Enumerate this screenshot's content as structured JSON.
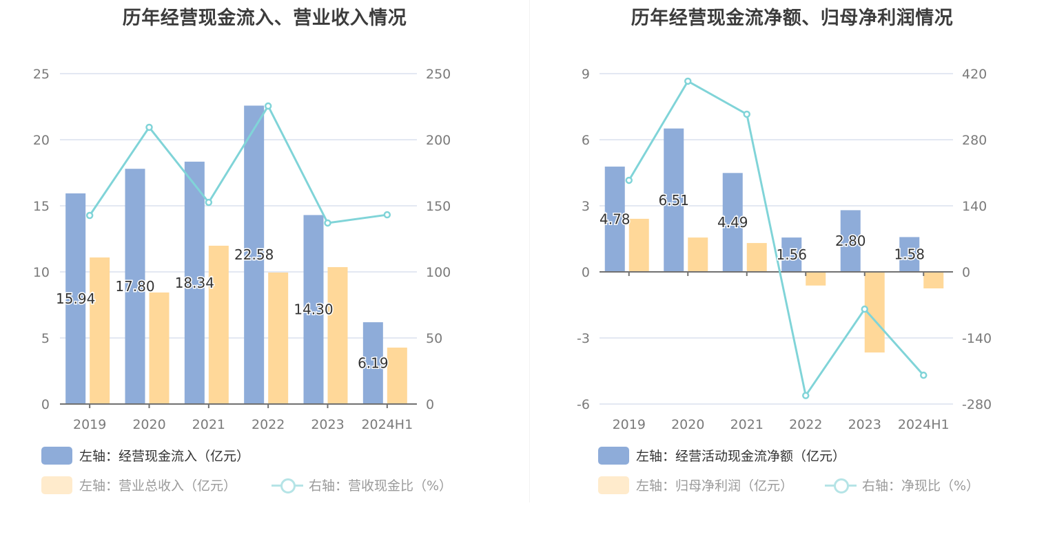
{
  "colors": {
    "bar_primary": "#8eacd9",
    "bar_secondary": "#ffd899",
    "line": "#80d4d8",
    "grid": "#e3e8f2",
    "axis": "#707070",
    "tick_text": "#7a7a7a",
    "label_text": "#333333"
  },
  "chart_data": [
    {
      "type": "bar",
      "title": "历年经营现金流入、营业收入情况",
      "categories": [
        "2019",
        "2020",
        "2021",
        "2022",
        "2023",
        "2024H1"
      ],
      "y_left": {
        "ticks": [
          "0",
          "5",
          "10",
          "15",
          "20",
          "25"
        ],
        "range": [
          0,
          25
        ]
      },
      "y_right": {
        "ticks": [
          "0",
          "50",
          "100",
          "150",
          "200",
          "250"
        ],
        "range": [
          0,
          250
        ]
      },
      "grid": true,
      "legend_position": "bottom-left",
      "series": [
        {
          "name": "左轴：经营现金流入（亿元）",
          "type": "bar",
          "axis": "left",
          "values": [
            15.94,
            17.8,
            18.34,
            22.58,
            14.3,
            6.19
          ],
          "labels": [
            "15.94",
            "17.80",
            "18.34",
            "22.58",
            "14.30",
            "6.19"
          ],
          "legend_active": true
        },
        {
          "name": "左轴：营业总收入（亿元）",
          "type": "bar",
          "axis": "left",
          "values": [
            11.09,
            8.44,
            11.98,
            9.95,
            10.36,
            4.27
          ],
          "legend_active": false
        },
        {
          "name": "右轴：营收现金比（%）",
          "type": "line",
          "axis": "right",
          "values": [
            142.7,
            209.4,
            152.6,
            225.5,
            137.0,
            143.2
          ],
          "legend_active": false
        }
      ]
    },
    {
      "type": "bar",
      "title": "历年经营现金流净额、归母净利润情况",
      "categories": [
        "2019",
        "2020",
        "2021",
        "2022",
        "2023",
        "2024H1"
      ],
      "y_left": {
        "ticks": [
          "-6",
          "-3",
          "0",
          "3",
          "6",
          "9"
        ],
        "range": [
          -6,
          9
        ]
      },
      "y_right": {
        "ticks": [
          "-280",
          "-140",
          "0",
          "140",
          "280",
          "420"
        ],
        "range": [
          -280,
          420
        ]
      },
      "grid": true,
      "legend_position": "bottom-left",
      "series": [
        {
          "name": "左轴：经营活动现金流净额（亿元）",
          "type": "bar",
          "axis": "left",
          "values": [
            4.78,
            6.51,
            4.49,
            1.56,
            2.8,
            1.58
          ],
          "labels": [
            "4.78",
            "6.51",
            "4.49",
            "1.56",
            "2.80",
            "1.58"
          ],
          "legend_active": true
        },
        {
          "name": "左轴：归母净利润（亿元）",
          "type": "bar",
          "axis": "left",
          "values": [
            2.41,
            1.56,
            1.31,
            -0.62,
            -3.66,
            -0.75
          ],
          "legend_active": false
        },
        {
          "name": "右轴：净现比（%）",
          "type": "line",
          "axis": "right",
          "values": [
            194,
            404,
            334,
            -262,
            -79,
            -219
          ],
          "legend_active": false
        }
      ]
    }
  ]
}
